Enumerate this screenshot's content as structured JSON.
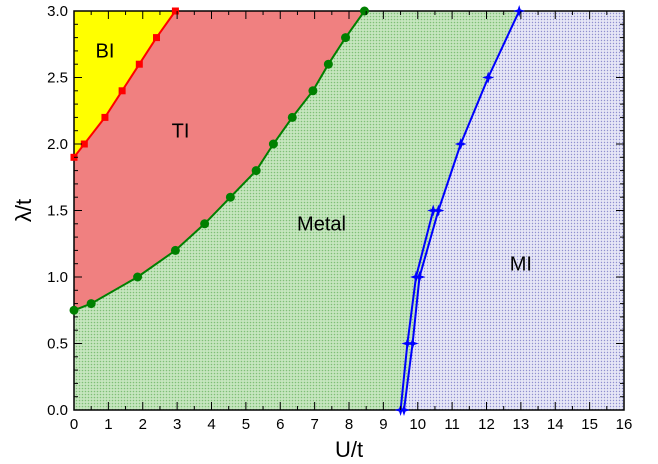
{
  "chart_data": {
    "type": "area",
    "title": "",
    "xlabel": "U/t",
    "ylabel": "λ/t",
    "xlim": [
      0,
      16
    ],
    "ylim": [
      0,
      3
    ],
    "x_ticks": [
      "0",
      "1",
      "2",
      "3",
      "4",
      "5",
      "6",
      "7",
      "8",
      "9",
      "10",
      "11",
      "12",
      "13",
      "14",
      "15",
      "16"
    ],
    "y_ticks": [
      "0.0",
      "0.5",
      "1.0",
      "1.5",
      "2.0",
      "2.5",
      "3.0"
    ],
    "regions": [
      {
        "label": "BI",
        "color": "#ffff00",
        "label_at": [
          0.9,
          2.65
        ]
      },
      {
        "label": "TI",
        "color": "#f08080",
        "label_at": [
          3.1,
          2.05
        ]
      },
      {
        "label": "Metal",
        "color": "#b8ddb0",
        "label_at": [
          7.2,
          1.35
        ]
      },
      {
        "label": "MI",
        "color": "#d8d8ee",
        "label_at": [
          13.0,
          1.05
        ]
      }
    ],
    "series": [
      {
        "color": "#ff0000",
        "marker": "square",
        "points": [
          [
            0,
            1.9
          ],
          [
            0.3,
            2.0
          ],
          [
            0.9,
            2.2
          ],
          [
            1.4,
            2.4
          ],
          [
            1.9,
            2.6
          ],
          [
            2.4,
            2.8
          ],
          [
            2.95,
            3.0
          ]
        ]
      },
      {
        "color": "#008000",
        "marker": "circle",
        "points": [
          [
            0,
            0.75
          ],
          [
            0.5,
            0.8
          ],
          [
            1.85,
            1.0
          ],
          [
            2.95,
            1.2
          ],
          [
            3.8,
            1.4
          ],
          [
            4.55,
            1.6
          ],
          [
            5.3,
            1.8
          ],
          [
            5.8,
            2.0
          ],
          [
            6.35,
            2.2
          ],
          [
            6.95,
            2.4
          ],
          [
            7.4,
            2.6
          ],
          [
            7.9,
            2.8
          ],
          [
            8.45,
            3.0
          ]
        ]
      },
      {
        "color": "#0000ff",
        "marker": "star",
        "points": [
          [
            9.5,
            0.0
          ],
          [
            9.6,
            0.0
          ],
          [
            9.85,
            0.5
          ],
          [
            10.05,
            1.0
          ],
          [
            10.6,
            1.5
          ],
          [
            11.25,
            2.0
          ],
          [
            12.05,
            2.5
          ],
          [
            12.95,
            3.0
          ]
        ],
        "extra_points": [
          [
            9.7,
            0.5
          ],
          [
            9.95,
            1.0
          ],
          [
            10.45,
            1.5
          ]
        ]
      }
    ],
    "grid": false,
    "legend": "none"
  }
}
